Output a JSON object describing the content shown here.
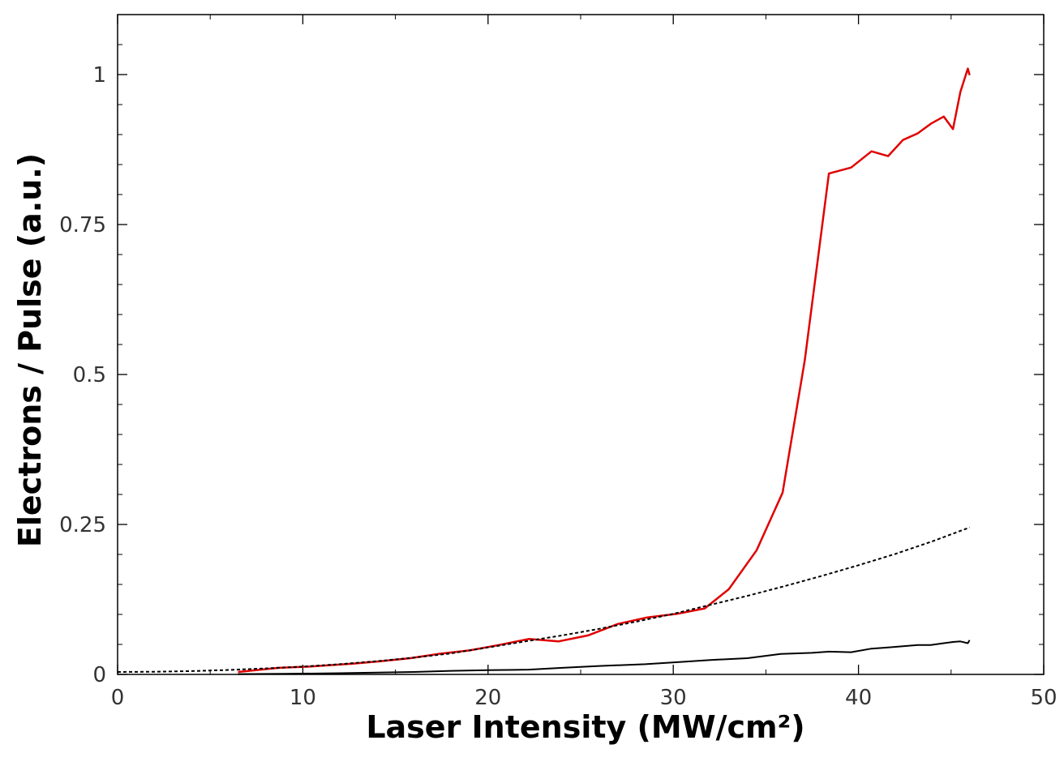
{
  "chart_data": {
    "type": "line",
    "title": "",
    "xlabel": "Laser Intensity (MW/cm²)",
    "ylabel": "Electrons / Pulse (a.u.)",
    "xlim": [
      0,
      50
    ],
    "ylim": [
      0,
      1.1
    ],
    "grid": false,
    "legend": "none",
    "x_ticks": [
      0,
      10,
      20,
      30,
      40,
      50
    ],
    "x_tick_labels": [
      "0",
      "10",
      "20",
      "30",
      "40",
      "50"
    ],
    "y_ticks": [
      0,
      0.25,
      0.5,
      0.75,
      1
    ],
    "y_tick_labels": [
      "0",
      "0.25",
      "0.5",
      "0.75",
      "1"
    ],
    "series": [
      {
        "color": "#e00000",
        "style": "solid",
        "x": [
          6.5,
          8.7,
          10.3,
          12.7,
          14.2,
          15.8,
          17.3,
          19.0,
          20.6,
          22.2,
          23.8,
          25.4,
          27.0,
          28.6,
          30.2,
          31.7,
          33.0,
          34.5,
          35.9,
          37.1,
          38.4,
          39.6,
          40.7,
          41.6,
          42.4,
          43.2,
          43.9,
          44.6,
          45.1,
          45.5,
          45.9,
          46.0
        ],
        "y": [
          0.004,
          0.011,
          0.013,
          0.018,
          0.022,
          0.027,
          0.034,
          0.04,
          0.049,
          0.059,
          0.055,
          0.065,
          0.084,
          0.095,
          0.101,
          0.11,
          0.142,
          0.207,
          0.303,
          0.524,
          0.835,
          0.845,
          0.872,
          0.864,
          0.891,
          0.902,
          0.918,
          0.93,
          0.909,
          0.971,
          1.01,
          0.999
        ]
      },
      {
        "color": "#000000",
        "style": "dotted",
        "x": [
          0,
          2,
          4,
          6,
          8,
          10,
          12,
          14,
          16,
          18,
          20,
          22,
          24,
          26,
          28,
          30,
          32,
          34,
          36,
          38,
          40,
          42,
          44,
          46
        ],
        "y": [
          0.004,
          0.0045,
          0.0055,
          0.0075,
          0.01,
          0.013,
          0.017,
          0.022,
          0.028,
          0.035,
          0.045,
          0.055,
          0.065,
          0.076,
          0.088,
          0.101,
          0.116,
          0.131,
          0.147,
          0.164,
          0.182,
          0.201,
          0.222,
          0.245
        ]
      },
      {
        "color": "#000000",
        "style": "solid",
        "x": [
          6.5,
          9.0,
          12.0,
          14.0,
          16.0,
          18.0,
          20.0,
          22.2,
          24.0,
          26.0,
          28.5,
          30.5,
          32.0,
          34.0,
          35.8,
          37.5,
          38.4,
          39.6,
          40.7,
          41.6,
          42.4,
          43.2,
          43.9,
          44.6,
          45.1,
          45.5,
          45.9,
          46.0
        ],
        "y": [
          0.0005,
          0.001,
          0.002,
          0.003,
          0.004,
          0.006,
          0.007,
          0.008,
          0.011,
          0.014,
          0.017,
          0.021,
          0.024,
          0.027,
          0.034,
          0.036,
          0.038,
          0.037,
          0.043,
          0.045,
          0.047,
          0.049,
          0.049,
          0.052,
          0.054,
          0.055,
          0.052,
          0.057
        ]
      }
    ]
  }
}
